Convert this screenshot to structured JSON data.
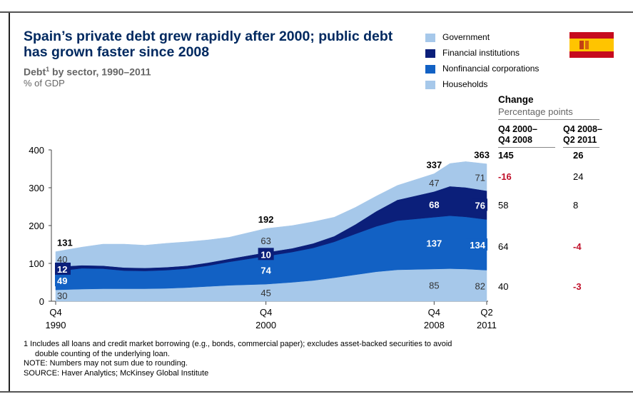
{
  "title": "Spain’s private debt grew rapidly after 2000; public debt has grown faster since 2008",
  "subtitle": "Debt",
  "subtitle_sup": "1",
  "subtitle_rest": " by sector, 1990–2011",
  "unit": "% of GDP",
  "legend": [
    {
      "label": "Government",
      "color": "#a6c8ea"
    },
    {
      "label": "Financial institutions",
      "color": "#0b1f7a"
    },
    {
      "label": "Nonfinancial corporations",
      "color": "#1261c4"
    },
    {
      "label": "Households",
      "color": "#a6c8ea"
    }
  ],
  "change_table": {
    "heading": "Change",
    "subheading": "Percentage points",
    "col1": [
      "Q4 2000–",
      "Q4 2008"
    ],
    "col2": [
      "Q4 2008–",
      "Q2 2011"
    ],
    "rows": [
      {
        "a": "145",
        "b": "26",
        "a_color": "#000000",
        "b_color": "#000000",
        "bold": true
      },
      {
        "a": "-16",
        "b": "24",
        "a_color": "#c0102a",
        "b_color": "#000000",
        "bold": false
      },
      {
        "a": "58",
        "b": "8",
        "a_color": "#000000",
        "b_color": "#000000",
        "bold": false
      },
      {
        "a": "64",
        "b": "-4",
        "a_color": "#000000",
        "b_color": "#c0102a",
        "bold": false
      },
      {
        "a": "40",
        "b": "-3",
        "a_color": "#000000",
        "b_color": "#c0102a",
        "bold": false
      }
    ]
  },
  "footnotes": [
    "1  Includes all loans and credit market borrowing (e.g., bonds, commercial paper); excludes asset-backed securities to avoid",
    "    double counting of the underlying loan.",
    "NOTE: Numbers may not sum due to rounding.",
    "SOURCE: Haver Analytics; McKinsey Global Institute"
  ],
  "chart_data": {
    "type": "area",
    "stacked": true,
    "x": [
      1990.75,
      1992,
      1993,
      1994,
      1995,
      1996,
      1997,
      1998,
      1999,
      2000.75,
      2002,
      2003,
      2004,
      2005,
      2006,
      2007,
      2008.75,
      2009.5,
      2010.25,
      2011.25
    ],
    "series": [
      {
        "name": "Households",
        "color": "#a6c8ea",
        "values": [
          30,
          32,
          33,
          33,
          33,
          34,
          36,
          39,
          42,
          45,
          50,
          55,
          62,
          70,
          78,
          83,
          85,
          86,
          85,
          82
        ]
      },
      {
        "name": "Nonfinancial corporations",
        "color": "#1261c4",
        "values": [
          49,
          55,
          53,
          48,
          47,
          48,
          50,
          55,
          62,
          74,
          80,
          86,
          95,
          108,
          120,
          130,
          137,
          140,
          138,
          134
        ]
      },
      {
        "name": "Financial institutions",
        "color": "#0b1f7a",
        "values": [
          12,
          8,
          8,
          8,
          8,
          8,
          8,
          8,
          8,
          10,
          10,
          12,
          15,
          25,
          40,
          55,
          68,
          78,
          78,
          76
        ]
      },
      {
        "name": "Government",
        "color": "#a6c8ea",
        "values": [
          40,
          48,
          57,
          62,
          60,
          63,
          63,
          60,
          57,
          63,
          60,
          57,
          50,
          45,
          40,
          38,
          47,
          60,
          68,
          71
        ]
      }
    ],
    "totals": [
      {
        "x": 1990.75,
        "label": "131"
      },
      {
        "x": 2000.75,
        "label": "192"
      },
      {
        "x": 2008.75,
        "label": "337"
      },
      {
        "x": 2011.25,
        "label": "363"
      }
    ],
    "segment_labels": [
      {
        "x": 1990.75,
        "values": [
          "30",
          "49",
          "12",
          "40"
        ]
      },
      {
        "x": 2000.75,
        "values": [
          "45",
          "74",
          "10",
          "63"
        ]
      },
      {
        "x": 2008.75,
        "values": [
          "85",
          "137",
          "68",
          "47"
        ]
      },
      {
        "x": 2011.25,
        "values": [
          "82",
          "134",
          "76",
          "71"
        ]
      }
    ],
    "ylim": [
      0,
      400
    ],
    "yticks": [
      "0",
      "100",
      "200",
      "300",
      "400"
    ],
    "xticks": [
      {
        "x": 1990.75,
        "line1": "Q4",
        "line2": "1990"
      },
      {
        "x": 2000.75,
        "line1": "Q4",
        "line2": "2000"
      },
      {
        "x": 2008.75,
        "line1": "Q4",
        "line2": "2008"
      },
      {
        "x": 2011.25,
        "line1": "Q2",
        "line2": "2011"
      }
    ]
  }
}
